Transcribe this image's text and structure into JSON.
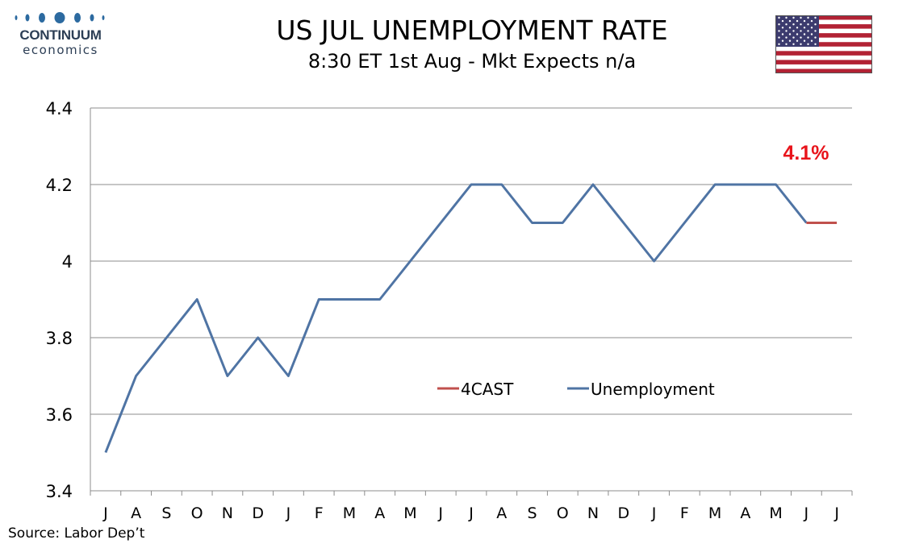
{
  "header": {
    "logo_name": "CONTINUUM",
    "logo_sub": "economics",
    "title": "US JUL UNEMPLOYMENT RATE",
    "subtitle": "8:30 ET 1st Aug - Mkt Expects n/a",
    "flag_icon": "us-flag-icon"
  },
  "footer": {
    "source": "Source: Labor Dep’t"
  },
  "chart_data": {
    "type": "line",
    "categories": [
      "J",
      "A",
      "S",
      "O",
      "N",
      "D",
      "J",
      "F",
      "M",
      "A",
      "M",
      "J",
      "J",
      "A",
      "S",
      "O",
      "N",
      "D",
      "J",
      "F",
      "M",
      "A",
      "M",
      "J",
      "J"
    ],
    "series": [
      {
        "name": "Unemployment",
        "color": "#4f74a4",
        "values": [
          3.5,
          3.7,
          3.8,
          3.9,
          3.7,
          3.8,
          3.7,
          3.9,
          3.9,
          3.9,
          4.0,
          4.1,
          4.2,
          4.2,
          4.1,
          4.1,
          4.2,
          4.1,
          4.0,
          4.1,
          4.2,
          4.2,
          4.2,
          4.1,
          null
        ]
      },
      {
        "name": "4CAST",
        "color": "#c0504d",
        "values": [
          null,
          null,
          null,
          null,
          null,
          null,
          null,
          null,
          null,
          null,
          null,
          null,
          null,
          null,
          null,
          null,
          null,
          null,
          null,
          null,
          null,
          null,
          null,
          4.1,
          4.1
        ]
      }
    ],
    "yticks": [
      "3.4",
      "3.6",
      "3.8",
      "4",
      "4.2",
      "4.4"
    ],
    "ylim": [
      3.4,
      4.4
    ],
    "grid": true,
    "legend": [
      "4CAST",
      "Unemployment"
    ],
    "legend_placement": "lower-center",
    "annotation": {
      "text": "4.1%",
      "color": "#e8141b"
    }
  }
}
